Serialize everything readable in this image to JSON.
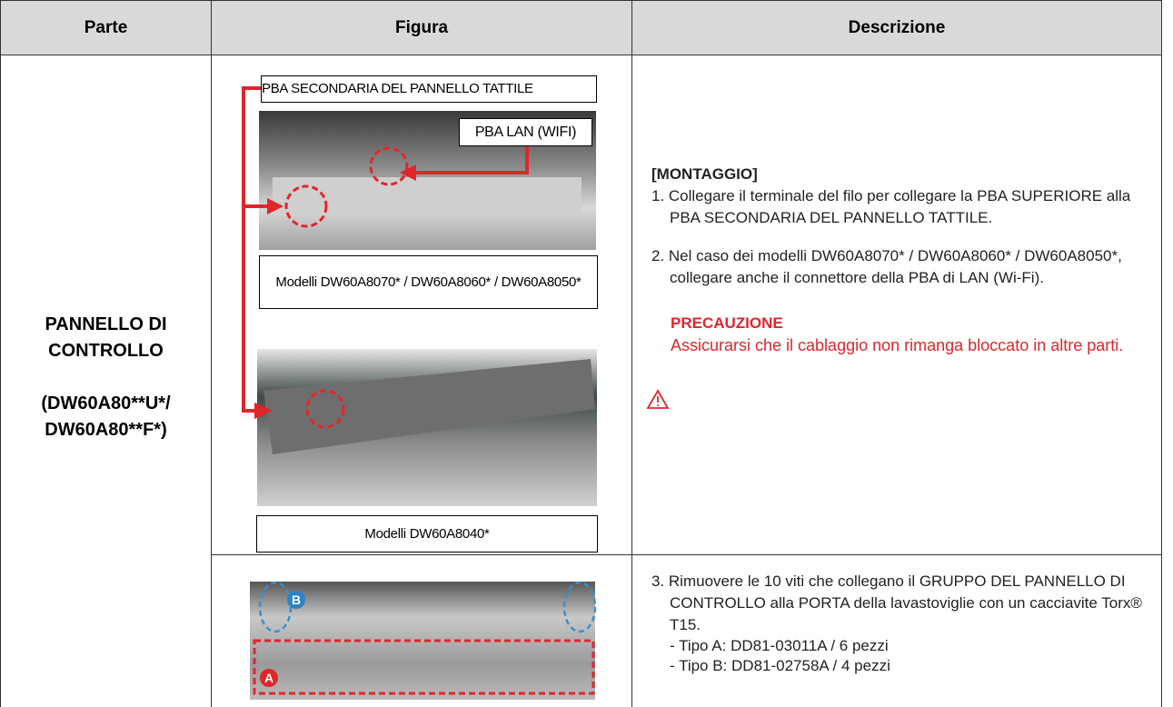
{
  "table": {
    "header": [
      "Parte",
      "Figura",
      "Descrizione"
    ],
    "part": {
      "title": "PANNELLO DI CONTROLLO",
      "models": "(DW60A80**U*/ DW60A80**F*)"
    }
  },
  "figures": {
    "label_secondary": "PBA SECONDARIA DEL PANNELLO TATTILE",
    "label_lan": "PBA LAN (WIFI)",
    "caption_1": "Modelli DW60A8070* / DW60A8060* / DW60A8050*",
    "caption_2": "Modelli DW60A8040*",
    "badge_a": "A",
    "badge_b": "B"
  },
  "description": {
    "heading": "[MONTAGGIO]",
    "steps": [
      "1. Collegare il terminale del filo per collegare la PBA SUPERIORE alla PBA SECONDARIA DEL PANNELLO TATTILE.",
      "2. Nel caso dei modelli DW60A8070* / DW60A8060* / DW60A8050*, collegare anche il connettore della PBA di LAN (Wi-Fi).",
      "3. Rimuovere le 10 viti che collegano il GRUPPO DEL PANNELLO DI CONTROLLO alla PORTA della lavastoviglie con un cacciavite Torx® T15."
    ],
    "caution": {
      "title": "PRECAUZIONE",
      "text": "Assicurarsi che il cablaggio non rimanga bloccato in altre parti."
    },
    "details": [
      "- Tipo A: DD81-03011A / 6 pezzi",
      "- Tipo B: DD81-02758A / 4 pezzi"
    ]
  }
}
